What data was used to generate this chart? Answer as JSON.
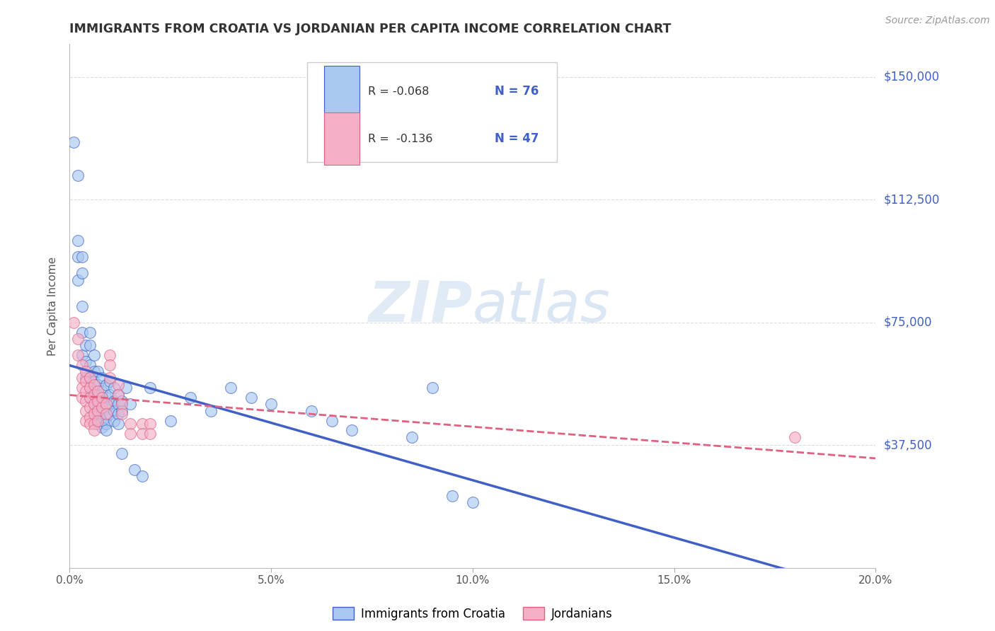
{
  "title": "IMMIGRANTS FROM CROATIA VS JORDANIAN PER CAPITA INCOME CORRELATION CHART",
  "source": "Source: ZipAtlas.com",
  "ylabel": "Per Capita Income",
  "xlim": [
    0.0,
    0.2
  ],
  "ylim": [
    0,
    160000
  ],
  "ytick_labels": [
    "$37,500",
    "$75,000",
    "$112,500",
    "$150,000"
  ],
  "ytick_values": [
    37500,
    75000,
    112500,
    150000
  ],
  "xtick_labels": [
    "0.0%",
    "5.0%",
    "10.0%",
    "15.0%",
    "20.0%"
  ],
  "xtick_values": [
    0.0,
    0.05,
    0.1,
    0.15,
    0.2
  ],
  "legend_r1": "R = -0.068",
  "legend_n1": "N = 76",
  "legend_r2": "R =  -0.136",
  "legend_n2": "N = 47",
  "color_blue": "#a8c8f0",
  "color_pink": "#f5b0c8",
  "line_blue": "#4060c8",
  "line_pink": "#e06080",
  "watermark_zip": "ZIP",
  "watermark_atlas": "atlas",
  "background_color": "#ffffff",
  "grid_color": "#dddddd",
  "title_color": "#333333",
  "right_label_color": "#4060c8",
  "blue_scatter": [
    [
      0.001,
      130000
    ],
    [
      0.002,
      120000
    ],
    [
      0.002,
      100000
    ],
    [
      0.002,
      95000
    ],
    [
      0.002,
      88000
    ],
    [
      0.003,
      95000
    ],
    [
      0.003,
      90000
    ],
    [
      0.003,
      80000
    ],
    [
      0.003,
      72000
    ],
    [
      0.003,
      65000
    ],
    [
      0.004,
      68000
    ],
    [
      0.004,
      63000
    ],
    [
      0.004,
      58000
    ],
    [
      0.005,
      72000
    ],
    [
      0.005,
      68000
    ],
    [
      0.005,
      62000
    ],
    [
      0.005,
      58000
    ],
    [
      0.005,
      55000
    ],
    [
      0.005,
      52000
    ],
    [
      0.006,
      65000
    ],
    [
      0.006,
      60000
    ],
    [
      0.006,
      57000
    ],
    [
      0.006,
      54000
    ],
    [
      0.006,
      50000
    ],
    [
      0.006,
      48000
    ],
    [
      0.007,
      60000
    ],
    [
      0.007,
      56000
    ],
    [
      0.007,
      53000
    ],
    [
      0.007,
      50000
    ],
    [
      0.007,
      47000
    ],
    [
      0.007,
      44000
    ],
    [
      0.008,
      58000
    ],
    [
      0.008,
      54000
    ],
    [
      0.008,
      51000
    ],
    [
      0.008,
      48000
    ],
    [
      0.008,
      45000
    ],
    [
      0.008,
      43000
    ],
    [
      0.009,
      56000
    ],
    [
      0.009,
      52000
    ],
    [
      0.009,
      49000
    ],
    [
      0.009,
      46000
    ],
    [
      0.009,
      44000
    ],
    [
      0.009,
      42000
    ],
    [
      0.01,
      57000
    ],
    [
      0.01,
      53000
    ],
    [
      0.01,
      50000
    ],
    [
      0.01,
      47000
    ],
    [
      0.011,
      55000
    ],
    [
      0.011,
      51000
    ],
    [
      0.011,
      48000
    ],
    [
      0.011,
      45000
    ],
    [
      0.012,
      53000
    ],
    [
      0.012,
      50000
    ],
    [
      0.012,
      47000
    ],
    [
      0.012,
      44000
    ],
    [
      0.013,
      51000
    ],
    [
      0.013,
      48000
    ],
    [
      0.013,
      35000
    ],
    [
      0.014,
      55000
    ],
    [
      0.015,
      50000
    ],
    [
      0.016,
      30000
    ],
    [
      0.018,
      28000
    ],
    [
      0.02,
      55000
    ],
    [
      0.025,
      45000
    ],
    [
      0.03,
      52000
    ],
    [
      0.035,
      48000
    ],
    [
      0.04,
      55000
    ],
    [
      0.045,
      52000
    ],
    [
      0.05,
      50000
    ],
    [
      0.06,
      48000
    ],
    [
      0.065,
      45000
    ],
    [
      0.07,
      42000
    ],
    [
      0.085,
      40000
    ],
    [
      0.09,
      55000
    ],
    [
      0.095,
      22000
    ],
    [
      0.1,
      20000
    ]
  ],
  "pink_scatter": [
    [
      0.001,
      75000
    ],
    [
      0.002,
      70000
    ],
    [
      0.002,
      65000
    ],
    [
      0.003,
      62000
    ],
    [
      0.003,
      58000
    ],
    [
      0.003,
      55000
    ],
    [
      0.003,
      52000
    ],
    [
      0.004,
      60000
    ],
    [
      0.004,
      57000
    ],
    [
      0.004,
      54000
    ],
    [
      0.004,
      51000
    ],
    [
      0.004,
      48000
    ],
    [
      0.004,
      45000
    ],
    [
      0.005,
      58000
    ],
    [
      0.005,
      55000
    ],
    [
      0.005,
      52000
    ],
    [
      0.005,
      49000
    ],
    [
      0.005,
      46000
    ],
    [
      0.005,
      44000
    ],
    [
      0.006,
      56000
    ],
    [
      0.006,
      53000
    ],
    [
      0.006,
      50000
    ],
    [
      0.006,
      47000
    ],
    [
      0.006,
      44000
    ],
    [
      0.006,
      42000
    ],
    [
      0.007,
      54000
    ],
    [
      0.007,
      51000
    ],
    [
      0.007,
      48000
    ],
    [
      0.007,
      45000
    ],
    [
      0.008,
      52000
    ],
    [
      0.008,
      49000
    ],
    [
      0.009,
      50000
    ],
    [
      0.009,
      47000
    ],
    [
      0.01,
      65000
    ],
    [
      0.01,
      62000
    ],
    [
      0.01,
      58000
    ],
    [
      0.012,
      56000
    ],
    [
      0.012,
      53000
    ],
    [
      0.013,
      50000
    ],
    [
      0.013,
      47000
    ],
    [
      0.015,
      44000
    ],
    [
      0.015,
      41000
    ],
    [
      0.018,
      44000
    ],
    [
      0.018,
      41000
    ],
    [
      0.02,
      44000
    ],
    [
      0.02,
      41000
    ],
    [
      0.18,
      40000
    ]
  ]
}
